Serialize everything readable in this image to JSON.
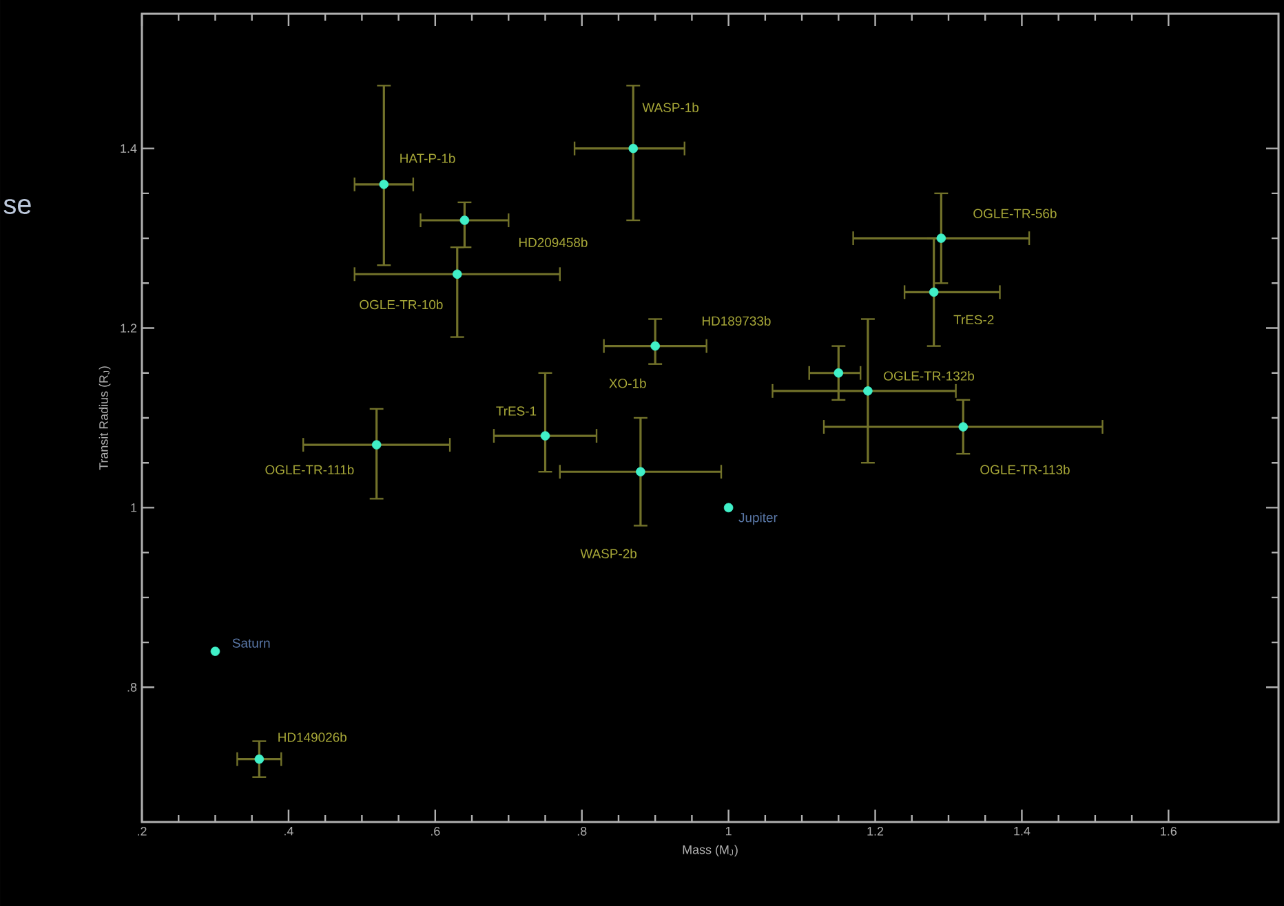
{
  "chart_data": {
    "type": "scatter",
    "xlabel": "Mass (M$_{J}$)",
    "ylabel": "Transit Radius (R$_{J}$)",
    "xlim": [
      0.2,
      1.75
    ],
    "ylim": [
      0.65,
      1.55
    ],
    "xticks": [
      {
        "value": 0.2,
        "label": ".2"
      },
      {
        "value": 0.4,
        "label": ".4"
      },
      {
        "value": 0.6,
        "label": ".6"
      },
      {
        "value": 0.8,
        "label": ".8"
      },
      1,
      1.2,
      1.4,
      1.6
    ],
    "yticks": [
      {
        "value": 0.8,
        "label": ".8"
      },
      1,
      1.2,
      1.4
    ],
    "marker": "circle",
    "series": [
      {
        "color": "#40f0c8",
        "x": [
          0.53,
          0.64,
          0.63,
          0.87,
          0.9,
          0.75,
          0.52,
          0.88,
          0.36,
          1.29,
          1.28,
          1.15,
          1.19,
          1.32
        ],
        "values": [
          1.36,
          1.32,
          1.26,
          1.4,
          1.18,
          1.08,
          1.07,
          1.04,
          0.72,
          1.3,
          1.24,
          1.15,
          1.13,
          1.09
        ],
        "errors": [
          [
            1.27,
            1.47
          ],
          [
            1.29,
            1.34
          ],
          [
            1.19,
            1.29
          ],
          [
            1.32,
            1.47
          ],
          [
            1.16,
            1.21
          ],
          [
            1.04,
            1.15
          ],
          [
            1.01,
            1.11
          ],
          [
            0.98,
            1.1
          ],
          [
            0.7,
            0.74
          ],
          [
            1.25,
            1.35
          ],
          [
            1.18,
            1.3
          ],
          [
            1.12,
            1.18
          ],
          [
            1.05,
            1.21
          ],
          [
            1.06,
            1.12
          ]
        ],
        "xerrors": [
          [
            0.49,
            0.57
          ],
          [
            0.58,
            0.7
          ],
          [
            0.49,
            0.77
          ],
          [
            0.79,
            0.94
          ],
          [
            0.83,
            0.97
          ],
          [
            0.68,
            0.82
          ],
          [
            0.42,
            0.62
          ],
          [
            0.77,
            0.99
          ],
          [
            0.33,
            0.39
          ],
          [
            1.17,
            1.41
          ],
          [
            1.24,
            1.37
          ],
          [
            1.11,
            1.18
          ],
          [
            1.06,
            1.31
          ],
          [
            1.13,
            1.51
          ]
        ]
      },
      {
        "color": "#40f0c8",
        "x": [
          1.0,
          0.3
        ],
        "values": [
          1.0,
          0.84
        ]
      }
    ],
    "annotations": [
      {
        "text": "HAT-P-1b",
        "x": 0.53,
        "y": 1.36
      },
      "HD209458b",
      {
        "text": "OGLE-TR-10b",
        "x": 0.63,
        "y": 1.26
      },
      "WASP-1b",
      {
        "text": "XO-1b",
        "x": 0.9,
        "y": 1.18
      },
      {
        "text": "TrES-1",
        "x": 0.75,
        "y": 1.08
      },
      {
        "text": "OGLE-TR-111b",
        "x": 0.52,
        "y": 1.07
      },
      "WASP-2b",
      {
        "text": "HD149026b",
        "x": 0.36,
        "y": 0.72
      },
      "OGLE-TR-56b",
      {
        "text": "TrES-2",
        "x": 1.28,
        "y": 1.24
      },
      "HD189733b",
      {
        "text": "OGLE-TR-132b",
        "x": 1.19,
        "y": 1.13
      },
      "OGLE-TR-113b",
      {
        "text": "Jupiter",
        "x": 1.0,
        "y": 1.0
      },
      {
        "text": "Saturn",
        "x": 0.3,
        "y": 0.84
      },
      "se"
    ]
  }
}
